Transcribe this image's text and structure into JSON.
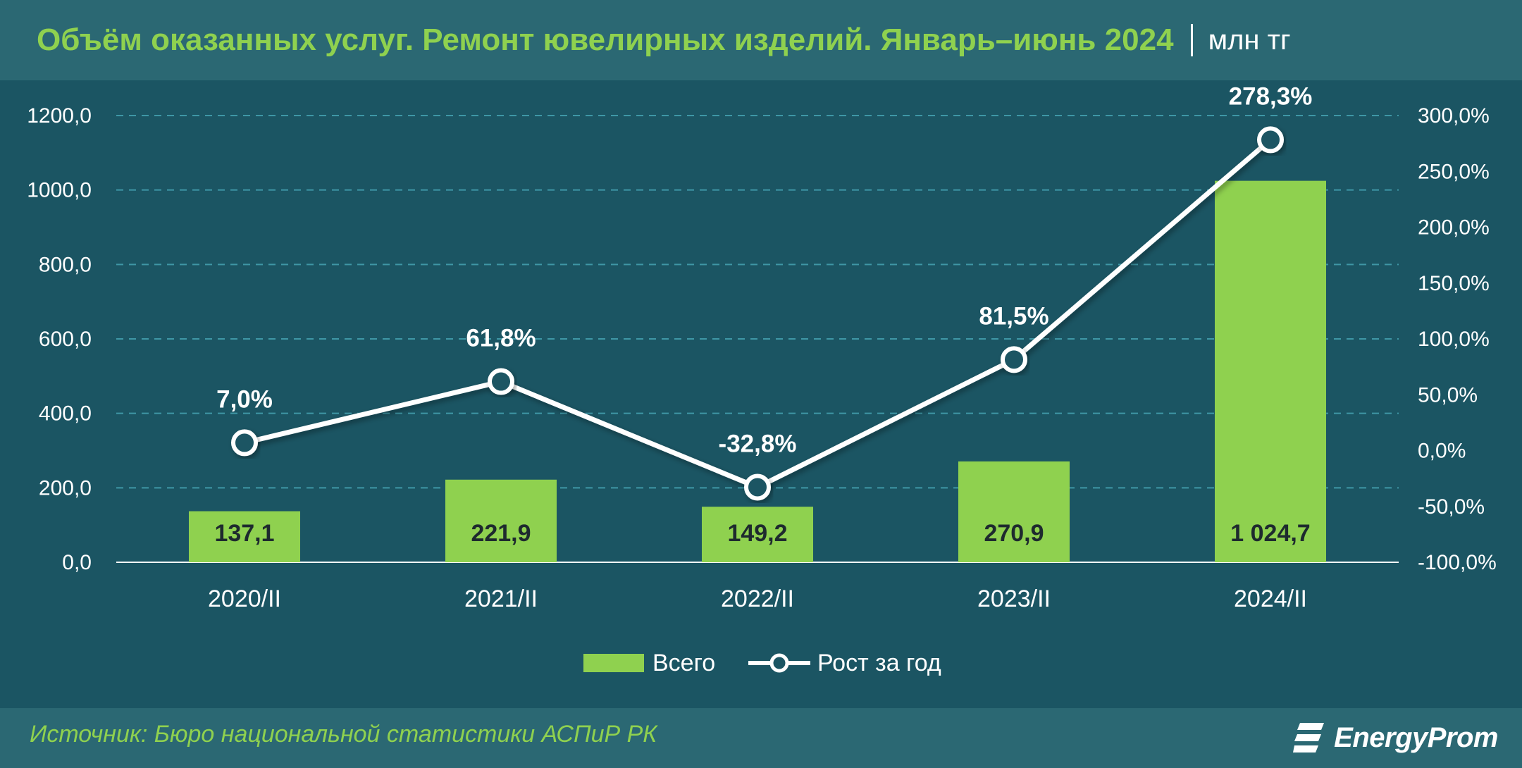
{
  "header": {
    "title": "Объём оказанных услуг. Ремонт ювелирных изделий. Январь–июнь 2024",
    "unit": "млн тг"
  },
  "footer": {
    "source": "Источник: Бюро национальной статистики АСПиР РК",
    "logo_text": "EnergyProm"
  },
  "colors": {
    "background": "#1b5563",
    "band": "#2b6873",
    "bar": "#8fd14f",
    "line": "#ffffff",
    "accent_text": "#8fd14f"
  },
  "chart_data": {
    "type": "bar",
    "categories": [
      "2020/II",
      "2021/II",
      "2022/II",
      "2023/II",
      "2024/II"
    ],
    "series": [
      {
        "name": "Всего",
        "type": "bar",
        "axis": "left",
        "values": [
          137.1,
          221.9,
          149.2,
          270.9,
          1024.7
        ],
        "labels": [
          "137,1",
          "221,9",
          "149,2",
          "270,9",
          "1 024,7"
        ]
      },
      {
        "name": "Рост за год",
        "type": "line",
        "axis": "right",
        "values": [
          7.0,
          61.8,
          -32.8,
          81.5,
          278.3
        ],
        "labels": [
          "7,0%",
          "61,8%",
          "-32,8%",
          "81,5%",
          "278,3%"
        ]
      }
    ],
    "y_left": {
      "min": 0,
      "max": 1200,
      "step": 200,
      "tick_labels": [
        "0,0",
        "200,0",
        "400,0",
        "600,0",
        "800,0",
        "1000,0",
        "1200,0"
      ]
    },
    "y_right": {
      "min": -100,
      "max": 300,
      "step": 50,
      "tick_labels": [
        "-100,0%",
        "-50,0%",
        "0,0%",
        "50,0%",
        "100,0%",
        "150,0%",
        "200,0%",
        "250,0%",
        "300,0%"
      ]
    },
    "grid": true,
    "legend_position": "bottom"
  }
}
